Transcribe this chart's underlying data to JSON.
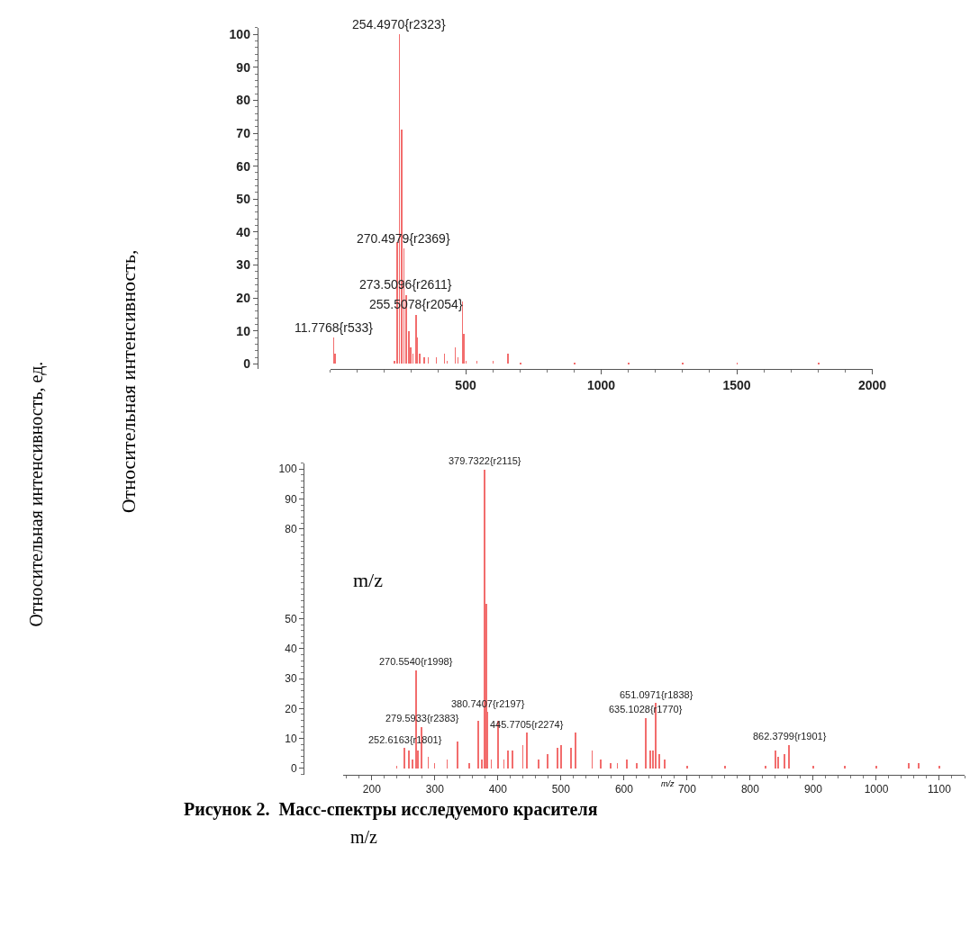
{
  "chart_data": [
    {
      "type": "bar",
      "xlabel": "m/z",
      "ylabel": "Относительная интенсивность,",
      "color": "#f26d6d",
      "x": [
        11.7768,
        16,
        236,
        246,
        254.497,
        262,
        270.4979,
        280,
        288,
        296,
        304,
        316,
        319,
        330,
        345,
        360,
        390,
        420,
        430,
        460,
        470,
        487,
        491,
        500,
        540,
        600,
        655,
        700,
        900,
        1100,
        1300,
        1500,
        1800
      ],
      "values": [
        8,
        3,
        1,
        37,
        100,
        71,
        35,
        21,
        10,
        5,
        3,
        15,
        8,
        3,
        2,
        2,
        2,
        3,
        1,
        5,
        2,
        19,
        9,
        1,
        1,
        1,
        3,
        0.5,
        0.5,
        0.5,
        0.3,
        0.3,
        0.3
      ],
      "xlim": [
        0,
        2000
      ],
      "xticks": [
        500,
        1000,
        1500,
        2000
      ],
      "ylim": [
        -1.5,
        102
      ],
      "yticks": [
        0,
        10,
        20,
        30,
        40,
        50,
        60,
        70,
        80,
        90,
        100
      ],
      "annotations": [
        {
          "text": "254.4970{r2323}",
          "x": 254.497,
          "y": 100
        },
        {
          "text": "270.4979{r2369}",
          "x": 270.4979,
          "y": 35
        },
        {
          "text": "273.5096{r2611}",
          "x": 280,
          "y": 21
        },
        {
          "text": "255.5078{r2054}",
          "x": 316,
          "y": 15
        },
        {
          "text": "11.7768{r533}",
          "x": 11.7768,
          "y": 8
        }
      ]
    },
    {
      "type": "bar",
      "xlabel": "m/z",
      "ylabel": "Относительная интенсивность, ед.",
      "color": "#f26d6d",
      "x": [
        240,
        252.6163,
        259,
        265,
        270.554,
        274,
        279.5933,
        290,
        300,
        320,
        336,
        355,
        369,
        375,
        379.7322,
        382,
        384,
        390,
        401,
        410,
        416,
        424,
        440,
        445.7705,
        465,
        479,
        495,
        501,
        516,
        523,
        550,
        563,
        579,
        590,
        605,
        620,
        635.1028,
        642,
        646,
        651.0971,
        656,
        665,
        700,
        760,
        825,
        840,
        845,
        855,
        862.3799,
        900,
        950,
        1000,
        1052,
        1068,
        1100
      ],
      "values": [
        1,
        7,
        6,
        3,
        33,
        6,
        14,
        4,
        2,
        3,
        9,
        2,
        16,
        3,
        100,
        55,
        19,
        3,
        16,
        3,
        6,
        6,
        8,
        12,
        3,
        5,
        7,
        8,
        7,
        12,
        6,
        3,
        2,
        2,
        3,
        2,
        17,
        6,
        6,
        22,
        5,
        3,
        1,
        1,
        1,
        6,
        4,
        5,
        8,
        1,
        1,
        1,
        2,
        2,
        1
      ],
      "xlim": [
        155,
        1140
      ],
      "xticks": [
        200,
        300,
        400,
        500,
        600,
        700,
        800,
        900,
        1000,
        1100
      ],
      "ylim": [
        -2,
        102
      ],
      "yticks": [
        0,
        10,
        20,
        30,
        40,
        50,
        80,
        90,
        100
      ],
      "annotations": [
        {
          "text": "379.7322{r2115}",
          "x": 379.7322,
          "y": 100
        },
        {
          "text": "270.5540{r1998}",
          "x": 270.554,
          "y": 33
        },
        {
          "text": "380.7407{r2197}",
          "x": 384,
          "y": 19
        },
        {
          "text": "279.5933{r2383}",
          "x": 279.5933,
          "y": 14
        },
        {
          "text": "445.7705{r2274}",
          "x": 445.7705,
          "y": 12
        },
        {
          "text": "252.6163{r1801}",
          "x": 252.6163,
          "y": 7
        },
        {
          "text": "651.0971{r1838}",
          "x": 651.0971,
          "y": 22
        },
        {
          "text": "635.1028{r1770}",
          "x": 635.1028,
          "y": 17
        },
        {
          "text": "862.3799{r1901}",
          "x": 862.3799,
          "y": 8
        },
        "Рисунок 2.  Масс-спектры исследуемого красителя",
        "m/z"
      ]
    }
  ]
}
